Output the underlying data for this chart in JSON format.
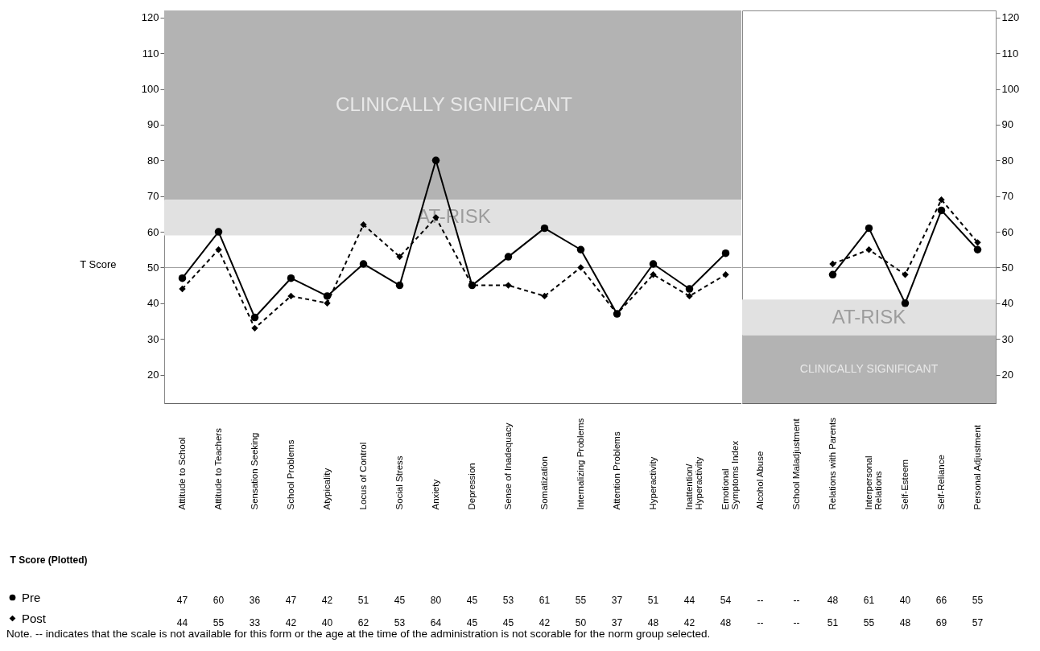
{
  "chart_data": [
    {
      "type": "line",
      "ylabel": "T Score",
      "categories": [
        "Attitude to School",
        "Attitude to Teachers",
        "Sensation Seeking",
        "School Problems",
        "Atypicality",
        "Locus of Control",
        "Social Stress",
        "Anxiety",
        "Depression",
        "Sense of Inadequacy",
        "Somatization",
        "Internalizing Problems",
        "Attention Problems",
        "Hyperactivity",
        "Inattention/ Hyperactivity",
        "Emotional Symptoms Index"
      ],
      "series": [
        {
          "name": "Pre",
          "color": "#000000",
          "marker": "circle",
          "line_style": "solid",
          "values": [
            47,
            60,
            36,
            47,
            42,
            51,
            45,
            80,
            45,
            53,
            61,
            55,
            37,
            51,
            44,
            54
          ],
          "value_labels": [
            "47",
            "60",
            "36",
            "47",
            "42",
            "51",
            "45",
            "80",
            "45",
            "53",
            "61",
            "55",
            "37",
            "51",
            "44",
            "54"
          ]
        },
        {
          "name": "Post",
          "color": "#000000",
          "marker": "diamond",
          "line_style": "dashed",
          "values": [
            44,
            55,
            33,
            42,
            40,
            62,
            53,
            64,
            45,
            45,
            42,
            50,
            37,
            48,
            42,
            48
          ],
          "value_labels": [
            "44",
            "55",
            "33",
            "42",
            "40",
            "62",
            "53",
            "64",
            "45",
            "45",
            "42",
            "50",
            "37",
            "48",
            "42",
            "48"
          ]
        }
      ],
      "ylim": [
        12,
        122
      ],
      "yticks": [
        20,
        30,
        40,
        50,
        60,
        70,
        80,
        90,
        100,
        110,
        120
      ],
      "bands": [
        {
          "axis": "y",
          "from": 69,
          "to": 122,
          "label": "CLINICALLY SIGNIFICANT",
          "color": "#b3b3b3"
        },
        {
          "axis": "y",
          "from": 59,
          "to": 69,
          "label": "AT-RISK",
          "color": "#e1e1e1"
        }
      ],
      "ref_lines": [
        {
          "axis": "y",
          "value": 50,
          "color": "#999999"
        }
      ],
      "legend": "bottom left",
      "annotations": [
        "T Score (Plotted)",
        "Note. -- indicates that the scale is not available for this form or the age at the time of the administration is not scorable for the norm group selected."
      ]
    },
    {
      "type": "line",
      "categories": [
        "Alcohol Abuse",
        "School Maladjustment",
        "Relations with Parents",
        "Interpersonal Relations",
        "Self-Esteem",
        "Self-Reliance",
        "Personal Adjustment"
      ],
      "series": [
        {
          "color": "#000000",
          "marker": "circle",
          "line_style": "solid",
          "values": [
            null,
            null,
            48,
            61,
            40,
            66,
            55
          ],
          "value_labels": [
            "--",
            "--",
            "48",
            "61",
            "40",
            "66",
            "55"
          ]
        },
        {
          "color": "#000000",
          "marker": "diamond",
          "line_style": "dashed",
          "values": [
            null,
            null,
            51,
            55,
            48,
            69,
            57
          ],
          "value_labels": [
            "--",
            "--",
            "51",
            "55",
            "48",
            "69",
            "57"
          ]
        }
      ],
      "ylim": [
        12,
        122
      ],
      "yticks": [
        20,
        30,
        40,
        50,
        60,
        70,
        80,
        90,
        100,
        110,
        120
      ],
      "bands": [
        {
          "axis": "y",
          "from": 41,
          "to": 31,
          "label": "AT-RISK",
          "color": "#e1e1e1"
        },
        {
          "axis": "y",
          "from": 31,
          "to": 12,
          "label": "CLINICALLY SIGNIFICANT",
          "color": "#b3b3b3"
        }
      ],
      "ref_lines": [
        {
          "axis": "y",
          "value": 50,
          "color": "#999999"
        }
      ]
    }
  ]
}
